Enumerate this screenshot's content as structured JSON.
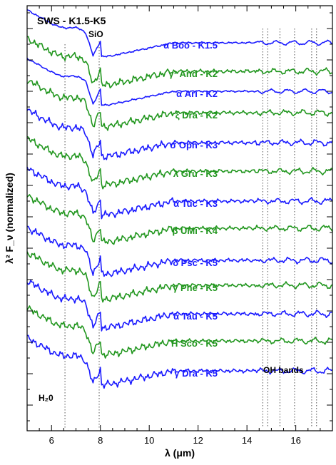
{
  "chart_data": {
    "type": "line",
    "title": "SWS - K1.5-K5",
    "xlabel": "λ (μm)",
    "ylabel": "λ² F_ν (normalized)",
    "xlim": [
      5.0,
      17.5
    ],
    "xticks": [
      6,
      8,
      10,
      12,
      14,
      16
    ],
    "grid": false,
    "features": [
      {
        "label": "SiO",
        "x": 7.95
      },
      {
        "label": "H₂0",
        "x": 6.55
      },
      {
        "label": "OH bands",
        "x": [
          14.65,
          14.85,
          15.35,
          15.95,
          16.65,
          16.85
        ]
      }
    ],
    "colors": {
      "blue": "#1a1aff",
      "green": "#21961e"
    },
    "series": [
      {
        "name": "α Boo - K1.5",
        "color": "blue",
        "jaggy": false
      },
      {
        "name": "γ¹ And - K2",
        "color": "green",
        "jaggy": true
      },
      {
        "name": "α Ari - K2",
        "color": "blue",
        "jaggy": false
      },
      {
        "name": "ξ Dra - K2",
        "color": "green",
        "jaggy": true
      },
      {
        "name": "σ Oph - K3",
        "color": "blue",
        "jaggy": true
      },
      {
        "name": "λ Gru - K3",
        "color": "green",
        "jaggy": true
      },
      {
        "name": "α Tuc - K3",
        "color": "blue",
        "jaggy": true
      },
      {
        "name": "β UMi - K4",
        "color": "green",
        "jaggy": true
      },
      {
        "name": "δ Psc - K5",
        "color": "blue",
        "jaggy": true
      },
      {
        "name": "γ Phe - K5",
        "color": "green",
        "jaggy": true
      },
      {
        "name": "α Tau - K5",
        "color": "blue",
        "jaggy": true
      },
      {
        "name": "H Sco - K5",
        "color": "green",
        "jaggy": true
      },
      {
        "name": "γ Dra - K5",
        "color": "blue",
        "jaggy": true
      }
    ]
  }
}
